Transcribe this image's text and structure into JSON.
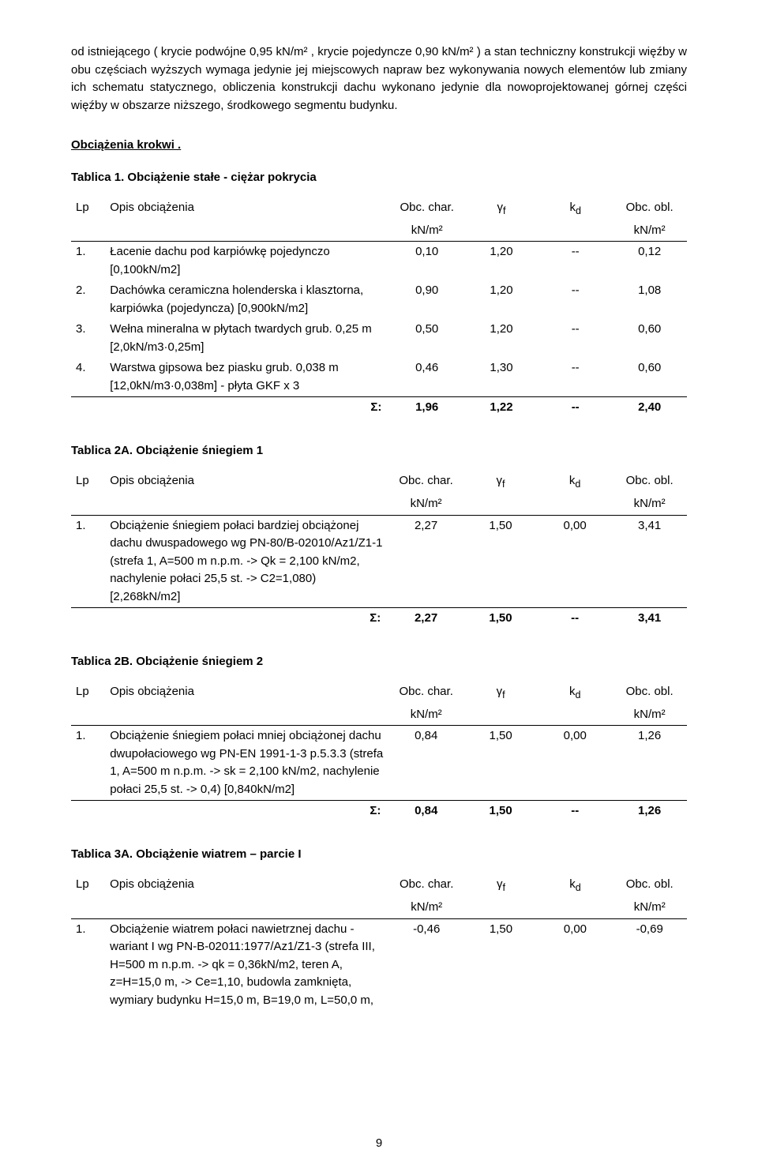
{
  "intro": "od istniejącego ( krycie podwójne 0,95 kN/m² , krycie pojedyncze 0,90 kN/m² ) a stan techniczny konstrukcji więźby w obu częściach wyższych wymaga jedynie jej miejscowych napraw bez wykonywania nowych elementów lub zmiany ich schematu statycznego, obliczenia konstrukcji dachu wykonano jedynie dla nowoprojektowanej górnej części więźby w obszarze niższego, środkowego segmentu budynku.",
  "section_title": "Obciążenia krokwi .",
  "col_headers": {
    "lp": "Lp",
    "opis": "Opis obciążenia",
    "obc_char": "Obc. char.",
    "unit": "kN/m²",
    "gamma": "γ",
    "gamma_sub": "f",
    "kd": "k",
    "kd_sub": "d",
    "obc_obl": "Obc. obl."
  },
  "sigma": "Σ:",
  "tables": {
    "t1": {
      "title": "Tablica 1. Obciążenie stałe - ciężar pokrycia",
      "rows": [
        {
          "lp": "1.",
          "opis": "Łacenie dachu pod karpiówkę pojedynczo [0,100kN/m2]",
          "c1": "0,10",
          "c2": "1,20",
          "c3": "--",
          "c4": "0,12"
        },
        {
          "lp": "2.",
          "opis": "Dachówka ceramiczna holenderska i klasztorna, karpiówka (pojedyncza)  [0,900kN/m2]",
          "c1": "0,90",
          "c2": "1,20",
          "c3": "--",
          "c4": "1,08"
        },
        {
          "lp": "3.",
          "opis": "Wełna mineralna w płytach twardych grub. 0,25 m [2,0kN/m3·0,25m]",
          "c1": "0,50",
          "c2": "1,20",
          "c3": "--",
          "c4": "0,60"
        },
        {
          "lp": "4.",
          "opis": "Warstwa gipsowa bez piasku grub. 0,038 m [12,0kN/m3·0,038m] - płyta GKF x 3",
          "c1": "0,46",
          "c2": "1,30",
          "c3": "--",
          "c4": "0,60"
        }
      ],
      "sum": {
        "c1": "1,96",
        "c2": "1,22",
        "c3": "--",
        "c4": "2,40"
      }
    },
    "t2a": {
      "title": "Tablica 2A. Obciążenie śniegiem 1",
      "rows": [
        {
          "lp": "1.",
          "opis": "Obciążenie śniegiem połaci bardziej obciążonej dachu dwuspadowego wg PN-80/B-02010/Az1/Z1-1 (strefa 1, A=500 m n.p.m. -> Qk = 2,100 kN/m2, nachylenie połaci 25,5 st. -> C2=1,080)  [2,268kN/m2]",
          "c1": "2,27",
          "c2": "1,50",
          "c3": "0,00",
          "c4": "3,41"
        }
      ],
      "sum": {
        "c1": "2,27",
        "c2": "1,50",
        "c3": "--",
        "c4": "3,41"
      }
    },
    "t2b": {
      "title": "Tablica 2B. Obciążenie śniegiem 2",
      "rows": [
        {
          "lp": "1.",
          "opis": "Obciążenie śniegiem połaci mniej obciążonej dachu dwupołaciowego wg PN-EN 1991-1-3 p.5.3.3 (strefa 1, A=500 m n.p.m. -> sk = 2,100 kN/m2, nachylenie połaci 25,5 st. -> 0,4)  [0,840kN/m2]",
          "c1": "0,84",
          "c2": "1,50",
          "c3": "0,00",
          "c4": "1,26"
        }
      ],
      "sum": {
        "c1": "0,84",
        "c2": "1,50",
        "c3": "--",
        "c4": "1,26"
      }
    },
    "t3a": {
      "title": "Tablica 3A. Obciążenie wiatrem – parcie I",
      "rows": [
        {
          "lp": "1.",
          "opis": "Obciążenie wiatrem połaci nawietrznej dachu - wariant I wg PN-B-02011:1977/Az1/Z1-3 (strefa III, H=500 m n.p.m. -> qk = 0,36kN/m2, teren A, z=H=15,0 m, -> Ce=1,10, budowla zamknięta, wymiary budynku H=15,0 m, B=19,0 m, L=50,0 m,",
          "c1": "-0,46",
          "c2": "1,50",
          "c3": "0,00",
          "c4": "-0,69"
        }
      ],
      "sum": null
    }
  },
  "page_number": "9"
}
